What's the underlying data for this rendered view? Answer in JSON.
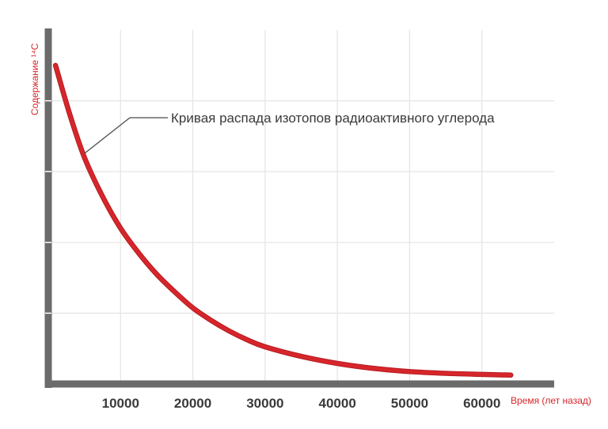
{
  "chart_data": {
    "type": "line",
    "title": "",
    "xlabel": "Время (лет назад)",
    "ylabel": "Содержание ¹⁴C",
    "xlim": [
      0,
      70000
    ],
    "ylim": [
      0,
      100
    ],
    "x_ticks": [
      10000,
      20000,
      30000,
      40000,
      50000,
      60000
    ],
    "grid": true,
    "series": [
      {
        "color": "#d7262b",
        "x": [
          1000,
          3000,
          5000,
          7500,
          10000,
          12500,
          15000,
          17500,
          20000,
          22500,
          25000,
          27500,
          30000,
          35000,
          40000,
          45000,
          50000,
          55000,
          60000,
          64000
        ],
        "y": [
          90,
          76,
          64,
          53,
          44,
          37,
          31,
          26,
          21.5,
          18,
          15,
          12.5,
          10.5,
          7.8,
          5.8,
          4.4,
          3.5,
          3.0,
          2.7,
          2.5
        ]
      }
    ],
    "annotations": [
      {
        "text": "Кривая распада изотопов радиоактивного углерода",
        "x": 5000,
        "y": 64
      }
    ]
  }
}
